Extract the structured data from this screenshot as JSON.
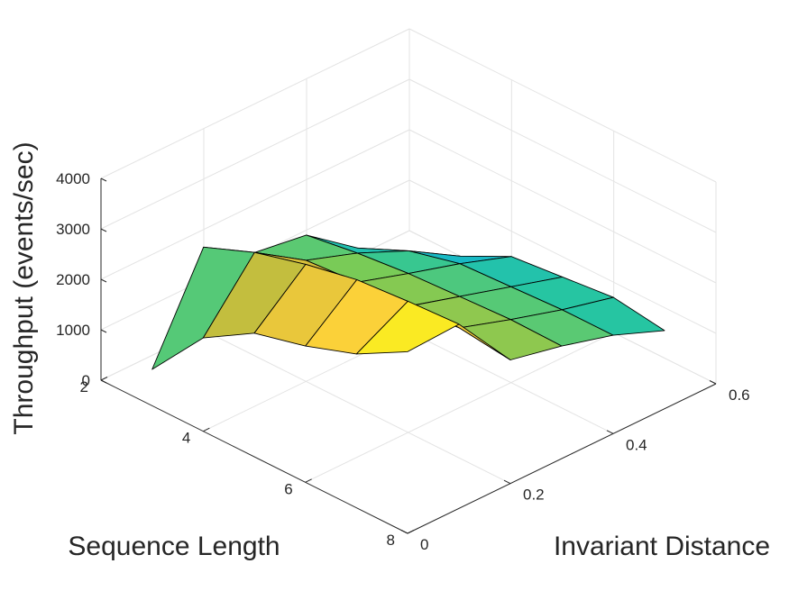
{
  "chart_data": {
    "type": "surface",
    "xlabel": "Sequence Length",
    "ylabel": "Invariant Distance",
    "zlabel": "Throughput (events/sec)",
    "x_ticks": [
      "2",
      "4",
      "6",
      "8"
    ],
    "y_ticks": [
      "0",
      "0.2",
      "0.4",
      "0.6"
    ],
    "z_ticks": [
      "0",
      "1000",
      "2000",
      "3000",
      "4000"
    ],
    "xlim": [
      2,
      8
    ],
    "ylim": [
      0,
      0.6
    ],
    "zlim": [
      0,
      4000
    ],
    "x": [
      3,
      4,
      5,
      6,
      7,
      8
    ],
    "y": [
      0,
      0.1,
      0.2,
      0.3,
      0.4,
      0.5
    ],
    "z": [
      [
        720,
        1850,
        2450,
        2700,
        3050,
        3600
      ],
      [
        2650,
        3050,
        3320,
        3520,
        3600,
        3650
      ],
      [
        2050,
        2400,
        2470,
        2500,
        2580,
        2450
      ],
      [
        1900,
        2050,
        2150,
        2200,
        2250,
        2230
      ],
      [
        1150,
        1600,
        1850,
        1900,
        1950,
        1950
      ],
      [
        0,
        1000,
        1500,
        1600,
        1700,
        1550
      ]
    ],
    "z_note_rows": "rows follow y index, columns follow x index",
    "colormap": [
      "#3e26a8",
      "#4659f0",
      "#2e8ff2",
      "#13b4d2",
      "#28c69e",
      "#7ccb55",
      "#d0bc3a",
      "#fbcf3b",
      "#f9fb14"
    ],
    "grid": true
  }
}
